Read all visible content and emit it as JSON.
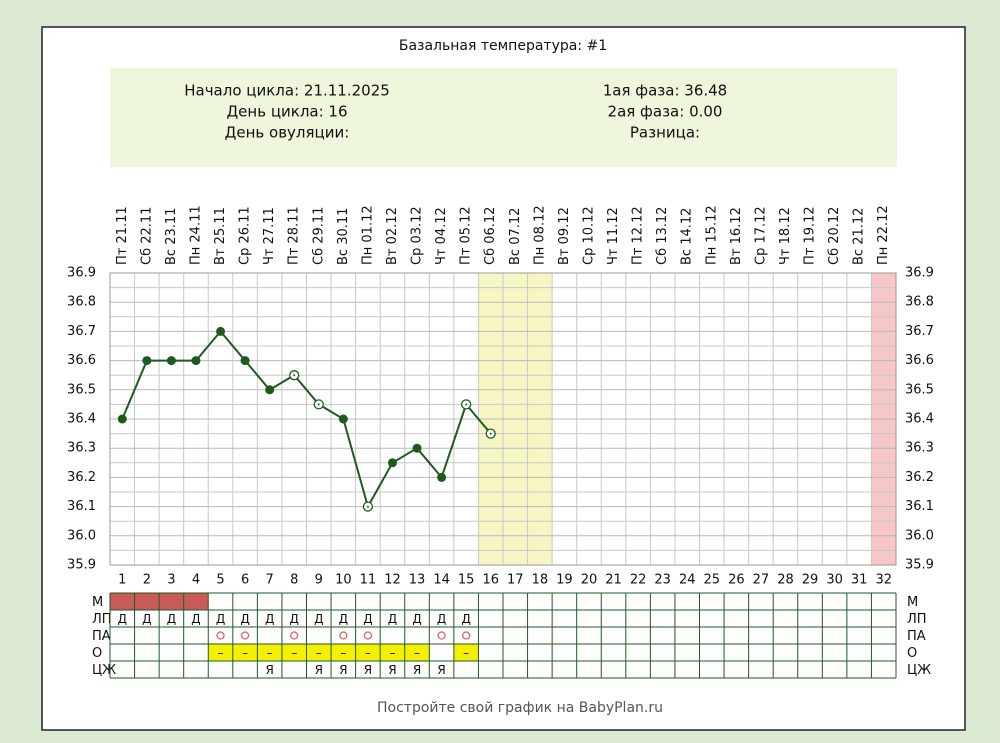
{
  "chart_data": {
    "type": "line",
    "title": "Базальная температура: #1",
    "info": {
      "left": [
        "Начало цикла: 21.11.2025",
        "День цикла: 16",
        "День овуляции:"
      ],
      "right": [
        "1ая фаза: 36.48",
        "2ая фаза: 0.00",
        "Разница:"
      ]
    },
    "categories": [
      1,
      2,
      3,
      4,
      5,
      6,
      7,
      8,
      9,
      10,
      11,
      12,
      13,
      14,
      15,
      16,
      17,
      18,
      19,
      20,
      21,
      22,
      23,
      24,
      25,
      26,
      27,
      28,
      29,
      30,
      31,
      32
    ],
    "dates": [
      "Пт 21.11",
      "Сб 22.11",
      "Вс 23.11",
      "Пн 24.11",
      "Вт 25.11",
      "Ср 26.11",
      "Чт 27.11",
      "Пт 28.11",
      "Сб 29.11",
      "Вс 30.11",
      "Пн 01.12",
      "Вт 02.12",
      "Ср 03.12",
      "Чт 04.12",
      "Пт 05.12",
      "Сб 06.12",
      "Вс 07.12",
      "Пн 08.12",
      "Вт 09.12",
      "Ср 10.12",
      "Чт 11.12",
      "Пт 12.12",
      "Сб 13.12",
      "Вс 14.12",
      "Пн 15.12",
      "Вт 16.12",
      "Ср 17.12",
      "Чт 18.12",
      "Пт 19.12",
      "Сб 20.12",
      "Вс 21.12",
      "Пн 22.12"
    ],
    "values": [
      36.4,
      36.6,
      36.6,
      36.6,
      36.7,
      36.6,
      36.5,
      36.55,
      36.45,
      36.4,
      36.1,
      36.25,
      36.3,
      36.2,
      36.45,
      36.35,
      null,
      null,
      null,
      null,
      null,
      null,
      null,
      null,
      null,
      null,
      null,
      null,
      null,
      null,
      null,
      null
    ],
    "markers": [
      "filled",
      "filled",
      "filled",
      "filled",
      "filled",
      "filled",
      "filled",
      "open",
      "open",
      "filled",
      "open",
      "filled",
      "filled",
      "filled",
      "open",
      "open",
      null,
      null,
      null,
      null,
      null,
      null,
      null,
      null,
      null,
      null,
      null,
      null,
      null,
      null,
      null,
      null
    ],
    "color": "#1e5a1e",
    "column_colors": [
      null,
      null,
      null,
      null,
      null,
      null,
      null,
      null,
      null,
      null,
      null,
      null,
      null,
      null,
      null,
      "#f6f6c4",
      "#f6f6c4",
      "#f6f6c4",
      null,
      null,
      null,
      null,
      null,
      null,
      null,
      null,
      null,
      null,
      null,
      null,
      null,
      "#f8c6c6"
    ],
    "ylim": [
      35.9,
      36.9
    ],
    "yticks": [
      35.9,
      {
        "value": 36.0,
        "label": "36.0"
      },
      36.1,
      36.2,
      36.3,
      36.4,
      36.5,
      36.6,
      36.7,
      36.8,
      36.9
    ],
    "grid": true,
    "rows": [
      {
        "label": "М",
        "kind": "fill",
        "color": "#c85a5a",
        "cells": [
          true,
          true,
          true,
          true,
          null,
          null,
          null,
          null,
          null,
          null,
          null,
          null,
          null,
          null,
          null,
          null,
          null,
          null,
          null,
          null,
          null,
          null,
          null,
          null,
          null,
          null,
          null,
          null,
          null,
          null,
          null,
          null
        ]
      },
      {
        "label": "ЛП",
        "kind": "text",
        "cells": [
          "Д",
          "Д",
          "Д",
          "Д",
          "Д",
          "Д",
          "Д",
          "Д",
          "Д",
          "Д",
          "Д",
          "Д",
          "Д",
          "Д",
          "Д",
          null,
          null,
          null,
          null,
          null,
          null,
          null,
          null,
          null,
          null,
          null,
          null,
          null,
          null,
          null,
          null,
          null
        ]
      },
      {
        "label": "ПА",
        "kind": "circle",
        "color": "#e06060",
        "cells": [
          null,
          null,
          null,
          null,
          true,
          true,
          null,
          true,
          null,
          true,
          true,
          null,
          null,
          true,
          true,
          null,
          null,
          null,
          null,
          null,
          null,
          null,
          null,
          null,
          null,
          null,
          null,
          null,
          null,
          null,
          null,
          null
        ]
      },
      {
        "label": "О",
        "kind": "text",
        "color": "#f5f000",
        "cells": [
          null,
          null,
          null,
          null,
          "–",
          "–",
          "–",
          "–",
          "–",
          "–",
          "–",
          "–",
          "–",
          null,
          "–",
          null,
          null,
          null,
          null,
          null,
          null,
          null,
          null,
          null,
          null,
          null,
          null,
          null,
          null,
          null,
          null,
          null
        ]
      },
      {
        "label": "ЦЖ",
        "kind": "text",
        "cells": [
          null,
          null,
          null,
          null,
          null,
          null,
          "Я",
          null,
          "Я",
          "Я",
          "Я",
          "Я",
          "Я",
          "Я",
          null,
          null,
          null,
          null,
          null,
          null,
          null,
          null,
          null,
          null,
          null,
          null,
          null,
          null,
          null,
          null,
          null,
          null
        ]
      }
    ],
    "footer": "Постройте свой график на BabyPlan.ru"
  }
}
